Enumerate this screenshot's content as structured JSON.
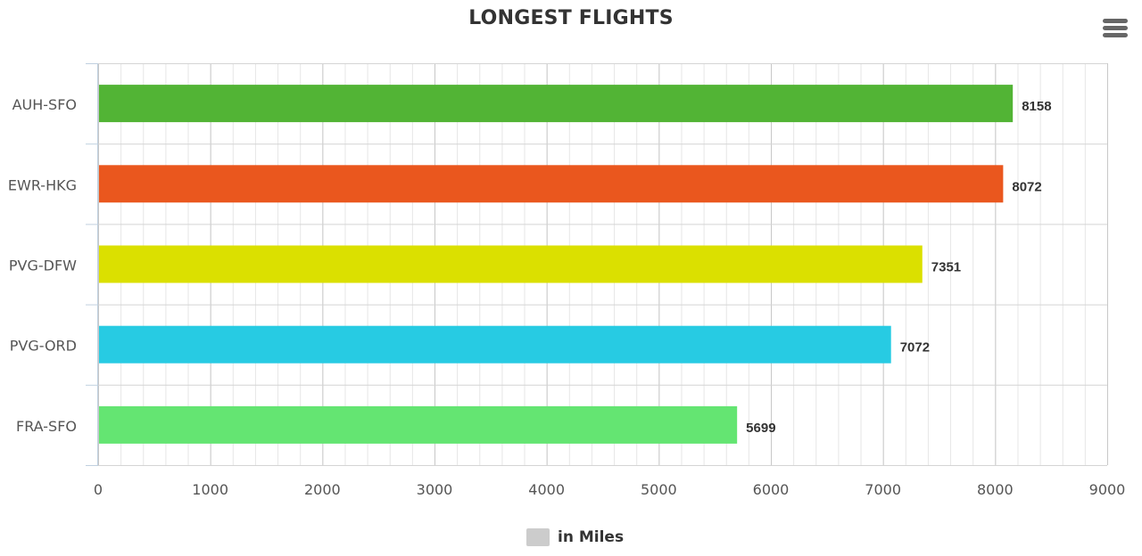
{
  "chart_data": {
    "type": "bar",
    "orientation": "horizontal",
    "title": "LONGEST FLIGHTS",
    "categories": [
      "AUH-SFO",
      "EWR-HKG",
      "PVG-DFW",
      "PVG-ORD",
      "FRA-SFO"
    ],
    "series": [
      {
        "name": "in Miles",
        "values": [
          8158,
          8072,
          7351,
          7072,
          5699
        ],
        "colors": [
          "#52b435",
          "#ea571e",
          "#dbe000",
          "#27cbe3",
          "#64e572"
        ]
      }
    ],
    "xlim": [
      0,
      9000
    ],
    "x_ticks": [
      "0",
      "1000",
      "2000",
      "3000",
      "4000",
      "5000",
      "6000",
      "7000",
      "8000",
      "9000"
    ],
    "data_labels": [
      "8158",
      "8072",
      "7351",
      "7072",
      "5699"
    ],
    "grid": true,
    "legend_position": "bottom-center",
    "legend_swatch_color": "#cccccc"
  },
  "menu": {
    "icon": "hamburger-menu-icon"
  }
}
